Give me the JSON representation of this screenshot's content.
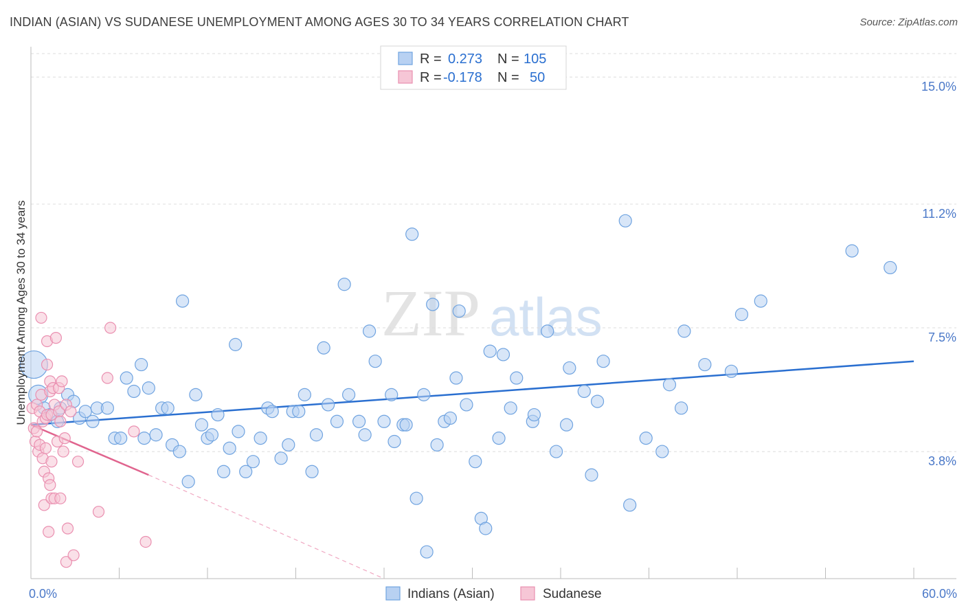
{
  "title": "INDIAN (ASIAN) VS SUDANESE UNEMPLOYMENT AMONG AGES 30 TO 34 YEARS CORRELATION CHART",
  "source": "Source: ZipAtlas.com",
  "watermark": {
    "zip": "ZIP",
    "atlas": "atlas"
  },
  "colors": {
    "blue": "#6fa3e0",
    "blue_fill": "#b8d1f2",
    "blue_line": "#2a6fd0",
    "pink": "#ea8fb0",
    "pink_fill": "#f6c6d6",
    "pink_line": "#e0648e",
    "label": "#4a78c8"
  },
  "legend": {
    "r_label": "R =",
    "n_label": "N =",
    "blue": {
      "r": "0.273",
      "n": "105"
    },
    "pink": {
      "r": "-0.178",
      "n": "50"
    }
  },
  "chart_data": {
    "type": "scatter",
    "title": "INDIAN (ASIAN) VS SUDANESE UNEMPLOYMENT AMONG AGES 30 TO 34 YEARS CORRELATION CHART",
    "xlabel": "",
    "ylabel": "Unemployment Among Ages 30 to 34 years",
    "xlim": [
      0,
      60
    ],
    "ylim": [
      0,
      15.7
    ],
    "x_tick_labels": [
      "0.0%",
      "60.0%"
    ],
    "y_ticks": [
      3.8,
      7.5,
      11.2,
      15.0
    ],
    "y_tick_labels": [
      "3.8%",
      "7.5%",
      "11.2%",
      "15.0%"
    ],
    "grid": true,
    "legend_position": "top-center",
    "series": [
      {
        "name": "Indians (Asian)",
        "color": "#6fa3e0",
        "trend": {
          "x": [
            0,
            60
          ],
          "y": [
            4.6,
            6.5
          ]
        },
        "points": [
          [
            0.2,
            6.4
          ],
          [
            0.5,
            5.5
          ],
          [
            0.9,
            5.1
          ],
          [
            1.3,
            4.9
          ],
          [
            1.8,
            4.7
          ],
          [
            2.0,
            5.1
          ],
          [
            2.5,
            5.5
          ],
          [
            2.9,
            5.3
          ],
          [
            3.3,
            4.8
          ],
          [
            3.7,
            5.0
          ],
          [
            4.2,
            4.7
          ],
          [
            4.5,
            5.1
          ],
          [
            5.2,
            5.1
          ],
          [
            5.7,
            4.2
          ],
          [
            6.1,
            4.2
          ],
          [
            6.5,
            6.0
          ],
          [
            7.0,
            5.6
          ],
          [
            7.5,
            6.4
          ],
          [
            7.7,
            4.2
          ],
          [
            8.0,
            5.7
          ],
          [
            8.5,
            4.3
          ],
          [
            8.9,
            5.1
          ],
          [
            9.3,
            5.1
          ],
          [
            9.6,
            4.0
          ],
          [
            10.1,
            3.8
          ],
          [
            10.3,
            8.3
          ],
          [
            10.7,
            2.9
          ],
          [
            11.2,
            5.5
          ],
          [
            11.6,
            4.6
          ],
          [
            12.0,
            4.2
          ],
          [
            12.3,
            4.3
          ],
          [
            12.7,
            4.9
          ],
          [
            13.1,
            3.2
          ],
          [
            13.5,
            3.9
          ],
          [
            13.9,
            7.0
          ],
          [
            14.1,
            4.4
          ],
          [
            14.6,
            3.2
          ],
          [
            15.1,
            3.5
          ],
          [
            15.6,
            4.2
          ],
          [
            16.1,
            5.1
          ],
          [
            16.4,
            5.0
          ],
          [
            17.0,
            3.6
          ],
          [
            17.5,
            4.0
          ],
          [
            17.8,
            5.0
          ],
          [
            18.2,
            5.0
          ],
          [
            18.6,
            5.5
          ],
          [
            19.1,
            3.2
          ],
          [
            19.4,
            4.3
          ],
          [
            19.9,
            6.9
          ],
          [
            20.2,
            5.2
          ],
          [
            20.8,
            4.7
          ],
          [
            21.3,
            8.8
          ],
          [
            21.6,
            5.5
          ],
          [
            22.3,
            4.7
          ],
          [
            22.7,
            4.3
          ],
          [
            23.0,
            7.4
          ],
          [
            23.4,
            6.5
          ],
          [
            24.0,
            4.7
          ],
          [
            24.5,
            5.5
          ],
          [
            24.7,
            4.1
          ],
          [
            25.3,
            4.6
          ],
          [
            25.5,
            4.6
          ],
          [
            25.9,
            10.3
          ],
          [
            26.2,
            2.4
          ],
          [
            26.7,
            5.5
          ],
          [
            26.9,
            0.8
          ],
          [
            27.3,
            8.2
          ],
          [
            27.6,
            4.0
          ],
          [
            28.1,
            4.7
          ],
          [
            28.5,
            4.8
          ],
          [
            28.9,
            6.0
          ],
          [
            29.1,
            8.0
          ],
          [
            29.6,
            5.2
          ],
          [
            30.2,
            3.5
          ],
          [
            30.6,
            1.8
          ],
          [
            30.9,
            1.5
          ],
          [
            31.2,
            6.8
          ],
          [
            31.8,
            4.2
          ],
          [
            32.1,
            6.7
          ],
          [
            32.6,
            5.1
          ],
          [
            33.0,
            6.0
          ],
          [
            34.1,
            4.7
          ],
          [
            34.2,
            4.9
          ],
          [
            35.1,
            7.4
          ],
          [
            35.7,
            3.8
          ],
          [
            36.4,
            4.6
          ],
          [
            36.6,
            6.3
          ],
          [
            37.6,
            5.6
          ],
          [
            38.1,
            3.1
          ],
          [
            38.5,
            5.3
          ],
          [
            38.9,
            6.5
          ],
          [
            40.4,
            10.7
          ],
          [
            40.7,
            2.2
          ],
          [
            41.8,
            4.2
          ],
          [
            42.9,
            3.8
          ],
          [
            43.4,
            5.8
          ],
          [
            44.2,
            5.1
          ],
          [
            44.4,
            7.4
          ],
          [
            45.8,
            6.4
          ],
          [
            47.6,
            6.2
          ],
          [
            48.3,
            7.9
          ],
          [
            49.6,
            8.3
          ],
          [
            55.8,
            9.8
          ],
          [
            58.4,
            9.3
          ]
        ]
      },
      {
        "name": "Sudanese",
        "color": "#ea8fb0",
        "trend": {
          "x": [
            0,
            8
          ],
          "y": [
            4.6,
            3.1
          ]
        },
        "trend_dashed_extension": {
          "x": [
            8,
            24
          ],
          "y": [
            3.1,
            0.0
          ]
        },
        "points": [
          [
            0.1,
            5.1
          ],
          [
            0.2,
            4.5
          ],
          [
            0.3,
            4.1
          ],
          [
            0.4,
            5.2
          ],
          [
            0.4,
            4.4
          ],
          [
            0.5,
            3.8
          ],
          [
            0.6,
            5.0
          ],
          [
            0.6,
            4.0
          ],
          [
            0.7,
            7.8
          ],
          [
            0.7,
            5.5
          ],
          [
            0.8,
            3.6
          ],
          [
            0.8,
            4.7
          ],
          [
            0.9,
            3.2
          ],
          [
            0.9,
            2.2
          ],
          [
            1.0,
            4.8
          ],
          [
            1.0,
            3.9
          ],
          [
            1.1,
            6.4
          ],
          [
            1.1,
            7.1
          ],
          [
            1.1,
            4.9
          ],
          [
            1.2,
            3.0
          ],
          [
            1.2,
            1.4
          ],
          [
            1.3,
            5.6
          ],
          [
            1.3,
            5.9
          ],
          [
            1.3,
            2.8
          ],
          [
            1.4,
            4.9
          ],
          [
            1.4,
            2.4
          ],
          [
            1.4,
            3.5
          ],
          [
            1.5,
            5.7
          ],
          [
            1.6,
            2.4
          ],
          [
            1.6,
            5.2
          ],
          [
            1.7,
            7.2
          ],
          [
            1.8,
            4.1
          ],
          [
            1.9,
            5.0
          ],
          [
            1.9,
            5.7
          ],
          [
            2.0,
            4.7
          ],
          [
            2.0,
            2.4
          ],
          [
            2.1,
            5.9
          ],
          [
            2.2,
            3.8
          ],
          [
            2.3,
            4.2
          ],
          [
            2.4,
            5.2
          ],
          [
            2.4,
            0.5
          ],
          [
            2.5,
            1.5
          ],
          [
            2.7,
            5.0
          ],
          [
            2.9,
            0.7
          ],
          [
            3.2,
            3.5
          ],
          [
            4.6,
            2.0
          ],
          [
            5.2,
            6.0
          ],
          [
            5.4,
            7.5
          ],
          [
            7.0,
            4.4
          ],
          [
            7.8,
            1.1
          ]
        ]
      }
    ]
  },
  "bottom_legend": {
    "blue_label": "Indians (Asian)",
    "pink_label": "Sudanese"
  }
}
